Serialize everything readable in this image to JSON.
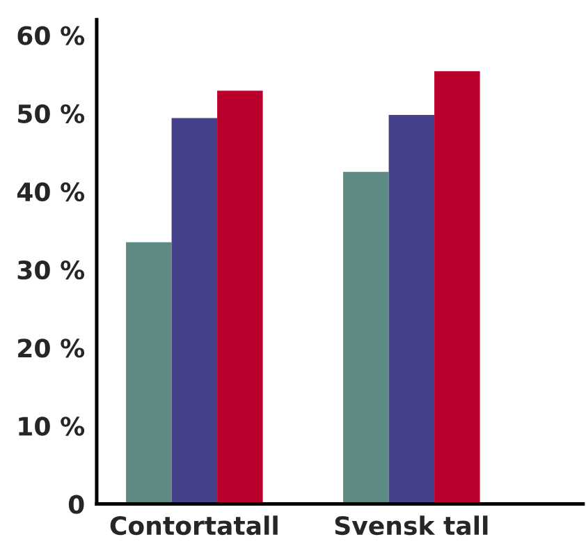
{
  "chart_data": {
    "type": "bar",
    "categories": [
      "Contortatall",
      "Svensk tall"
    ],
    "series": [
      {
        "color": "#5e8a86",
        "values": [
          33.5,
          42.5
        ]
      },
      {
        "color": "#45418a",
        "values": [
          49.4,
          49.8
        ]
      },
      {
        "color": "#bc002d",
        "values": [
          52.9,
          55.4
        ]
      }
    ],
    "ylim": [
      0,
      62
    ],
    "yticks": [
      0,
      {
        "value": 10,
        "label": "10 %"
      },
      {
        "value": 20,
        "label": "20 %"
      },
      {
        "value": 30,
        "label": "30 %"
      },
      {
        "value": 40,
        "label": "40 %"
      },
      {
        "value": 50,
        "label": "50 %"
      },
      {
        "value": 60,
        "label": "60 %"
      }
    ],
    "grid": false
  }
}
